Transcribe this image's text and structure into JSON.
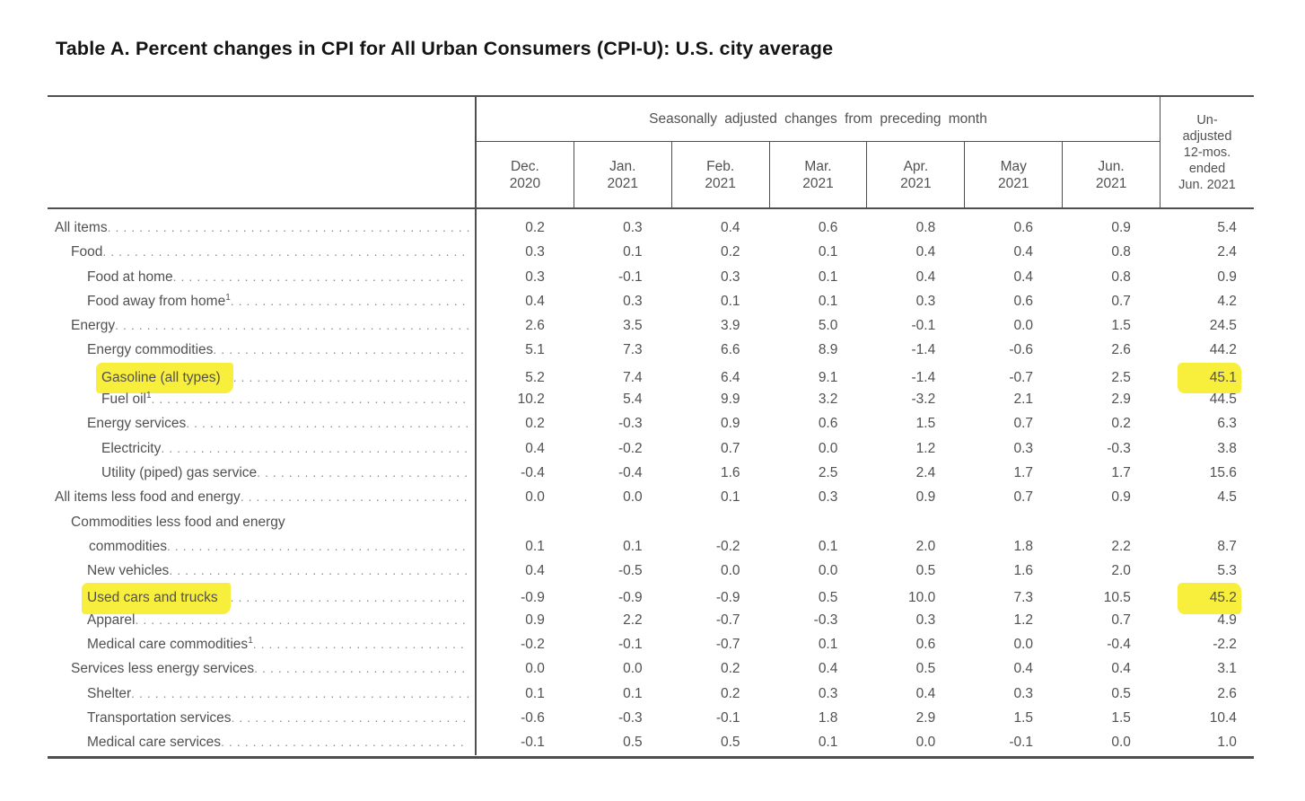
{
  "page": {
    "title": "Table A. Percent changes in CPI for All Urban Consumers (CPI-U): U.S. city average"
  },
  "colors": {
    "highlight": "#f8ee3c",
    "rule": "#4f4f4f",
    "text": "#515154"
  },
  "table": {
    "group_header": "Seasonally adjusted changes from preceding month",
    "unadjusted_header_lines": [
      "Un-",
      "adjusted",
      "12-mos.",
      "ended",
      "Jun. 2021"
    ],
    "columns": [
      {
        "month": "Dec.",
        "year": "2020"
      },
      {
        "month": "Jan.",
        "year": "2021"
      },
      {
        "month": "Feb.",
        "year": "2021"
      },
      {
        "month": "Mar.",
        "year": "2021"
      },
      {
        "month": "Apr.",
        "year": "2021"
      },
      {
        "month": "May",
        "year": "2021"
      },
      {
        "month": "Jun.",
        "year": "2021"
      }
    ],
    "rows": [
      {
        "label": "All items",
        "indent": 0,
        "monthly": [
          "0.2",
          "0.3",
          "0.4",
          "0.6",
          "0.8",
          "0.6",
          "0.9"
        ],
        "annual": "5.4"
      },
      {
        "label": "Food",
        "indent": 1,
        "monthly": [
          "0.3",
          "0.1",
          "0.2",
          "0.1",
          "0.4",
          "0.4",
          "0.8"
        ],
        "annual": "2.4"
      },
      {
        "label": "Food at home",
        "indent": 2,
        "monthly": [
          "0.3",
          "-0.1",
          "0.3",
          "0.1",
          "0.4",
          "0.4",
          "0.8"
        ],
        "annual": "0.9"
      },
      {
        "label": "Food away from home",
        "footnote": "1",
        "indent": 2,
        "monthly": [
          "0.4",
          "0.3",
          "0.1",
          "0.1",
          "0.3",
          "0.6",
          "0.7"
        ],
        "annual": "4.2"
      },
      {
        "label": "Energy",
        "indent": 1,
        "monthly": [
          "2.6",
          "3.5",
          "3.9",
          "5.0",
          "-0.1",
          "0.0",
          "1.5"
        ],
        "annual": "24.5"
      },
      {
        "label": "Energy commodities",
        "indent": 2,
        "monthly": [
          "5.1",
          "7.3",
          "6.6",
          "8.9",
          "-1.4",
          "-0.6",
          "2.6"
        ],
        "annual": "44.2"
      },
      {
        "label": "Gasoline (all types)",
        "indent": 3,
        "highlight_label": true,
        "highlight_annual": true,
        "monthly": [
          "5.2",
          "7.4",
          "6.4",
          "9.1",
          "-1.4",
          "-0.7",
          "2.5"
        ],
        "annual": "45.1"
      },
      {
        "label": "Fuel oil",
        "footnote": "1",
        "indent": 3,
        "monthly": [
          "10.2",
          "5.4",
          "9.9",
          "3.2",
          "-3.2",
          "2.1",
          "2.9"
        ],
        "annual": "44.5"
      },
      {
        "label": "Energy services",
        "indent": 2,
        "monthly": [
          "0.2",
          "-0.3",
          "0.9",
          "0.6",
          "1.5",
          "0.7",
          "0.2"
        ],
        "annual": "6.3"
      },
      {
        "label": "Electricity",
        "indent": 3,
        "monthly": [
          "0.4",
          "-0.2",
          "0.7",
          "0.0",
          "1.2",
          "0.3",
          "-0.3"
        ],
        "annual": "3.8"
      },
      {
        "label": "Utility (piped) gas service",
        "indent": 3,
        "monthly": [
          "-0.4",
          "-0.4",
          "1.6",
          "2.5",
          "2.4",
          "1.7",
          "1.7"
        ],
        "annual": "15.6"
      },
      {
        "label": "All items less food and energy",
        "indent": 0,
        "monthly": [
          "0.0",
          "0.0",
          "0.1",
          "0.3",
          "0.9",
          "0.7",
          "0.9"
        ],
        "annual": "4.5"
      },
      {
        "label": "Commodities less food and energy",
        "label_line2": "commodities",
        "indent": 1,
        "monthly": [
          "0.1",
          "0.1",
          "-0.2",
          "0.1",
          "2.0",
          "1.8",
          "2.2"
        ],
        "annual": "8.7"
      },
      {
        "label": "New vehicles",
        "indent": 2,
        "monthly": [
          "0.4",
          "-0.5",
          "0.0",
          "0.0",
          "0.5",
          "1.6",
          "2.0"
        ],
        "annual": "5.3"
      },
      {
        "label": "Used cars and trucks",
        "indent": 2,
        "highlight_label": true,
        "highlight_annual": true,
        "monthly": [
          "-0.9",
          "-0.9",
          "-0.9",
          "0.5",
          "10.0",
          "7.3",
          "10.5"
        ],
        "annual": "45.2"
      },
      {
        "label": "Apparel",
        "indent": 2,
        "monthly": [
          "0.9",
          "2.2",
          "-0.7",
          "-0.3",
          "0.3",
          "1.2",
          "0.7"
        ],
        "annual": "4.9"
      },
      {
        "label": "Medical care commodities",
        "footnote": "1",
        "indent": 2,
        "monthly": [
          "-0.2",
          "-0.1",
          "-0.7",
          "0.1",
          "0.6",
          "0.0",
          "-0.4"
        ],
        "annual": "-2.2"
      },
      {
        "label": "Services less energy services",
        "indent": 1,
        "monthly": [
          "0.0",
          "0.0",
          "0.2",
          "0.4",
          "0.5",
          "0.4",
          "0.4"
        ],
        "annual": "3.1"
      },
      {
        "label": "Shelter",
        "indent": 2,
        "monthly": [
          "0.1",
          "0.1",
          "0.2",
          "0.3",
          "0.4",
          "0.3",
          "0.5"
        ],
        "annual": "2.6"
      },
      {
        "label": "Transportation services",
        "indent": 2,
        "monthly": [
          "-0.6",
          "-0.3",
          "-0.1",
          "1.8",
          "2.9",
          "1.5",
          "1.5"
        ],
        "annual": "10.4"
      },
      {
        "label": "Medical care services",
        "indent": 2,
        "monthly": [
          "-0.1",
          "0.5",
          "0.5",
          "0.1",
          "0.0",
          "-0.1",
          "0.0"
        ],
        "annual": "1.0"
      }
    ]
  }
}
